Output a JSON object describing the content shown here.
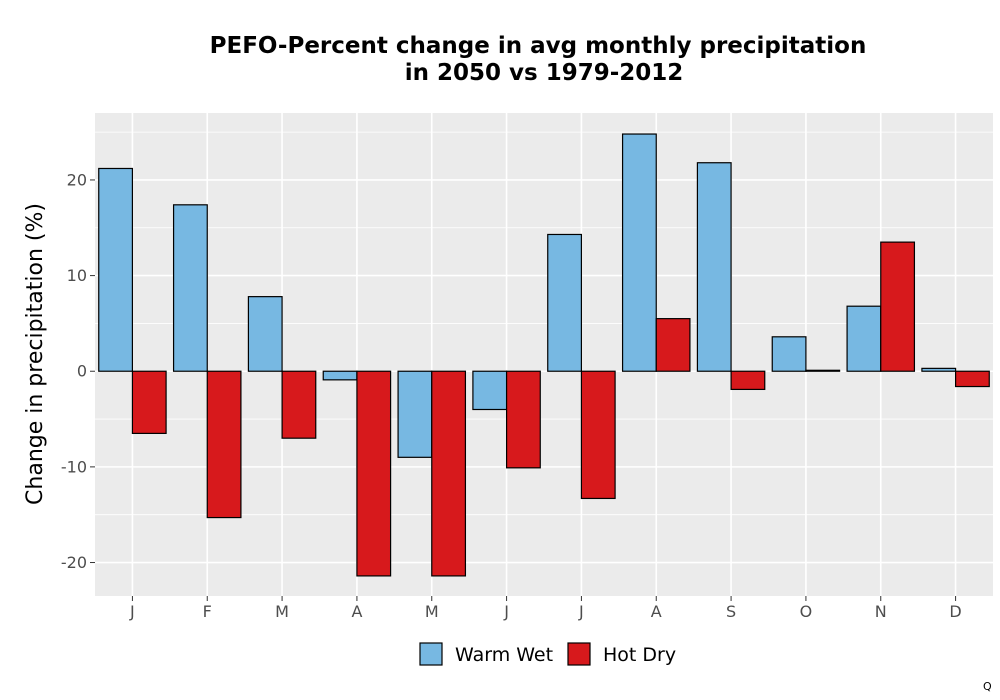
{
  "chart_data": {
    "type": "bar",
    "title": "PEFO-Percent change in avg monthly precipitation",
    "subtitle": "in 2050 vs 1979-2012",
    "xlabel": "",
    "ylabel": "Change in precipitation (%)",
    "categories": [
      "J",
      "F",
      "M",
      "A",
      "M",
      "J",
      "J",
      "A",
      "S",
      "O",
      "N",
      "D"
    ],
    "series": [
      {
        "name": "Warm Wet",
        "color": "#77b8e2",
        "values": [
          21.2,
          17.4,
          7.8,
          -0.9,
          -9.0,
          -4.0,
          14.3,
          24.8,
          21.8,
          3.6,
          6.8,
          0.3
        ]
      },
      {
        "name": "Hot Dry",
        "color": "#d7191c",
        "values": [
          -6.5,
          -15.3,
          -7.0,
          -21.4,
          -21.4,
          -10.1,
          -13.3,
          5.5,
          -1.9,
          0.1,
          13.5,
          -1.6
        ]
      }
    ],
    "ylim": [
      -23.5,
      27.0
    ],
    "yticks": [
      -20,
      -10,
      0,
      10,
      20
    ],
    "grid": true,
    "panel_background": "#ebebeb",
    "legend_position": "bottom",
    "footnote": "Q"
  }
}
